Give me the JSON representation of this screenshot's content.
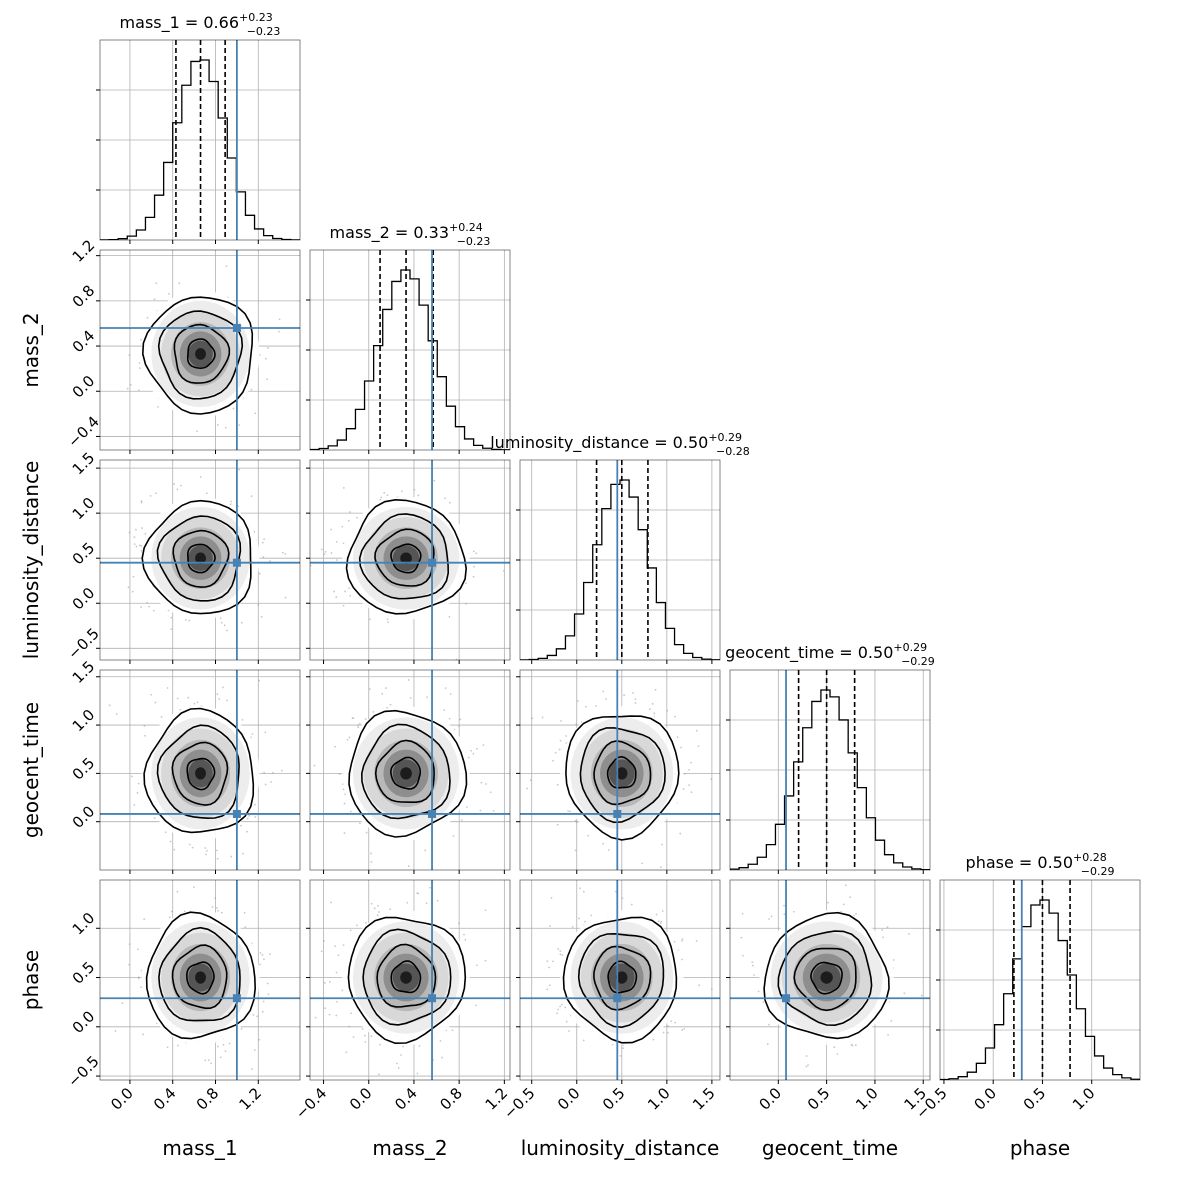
{
  "chart_data": {
    "type": "corner",
    "parameters": [
      {
        "label": "mass_1",
        "title_name": "mass_1",
        "median": "0.66",
        "plus": "+0.23",
        "minus": "−0.23",
        "range": [
          -0.28,
          1.59
        ],
        "ticks": [
          "0.0",
          "0.4",
          "0.8",
          "1.2"
        ],
        "tick_values": [
          0.0,
          0.4,
          0.8,
          1.2
        ],
        "truth": 1.0,
        "quantiles": [
          0.43,
          0.66,
          0.89
        ],
        "mean": 0.66,
        "sd": 0.23
      },
      {
        "label": "mass_2",
        "title_name": "mass_2",
        "median": "0.33",
        "plus": "+0.24",
        "minus": "−0.23",
        "range": [
          -0.52,
          1.25
        ],
        "ticks": [
          "−0.4",
          "0.0",
          "0.4",
          "0.8",
          "1.2"
        ],
        "tick_values": [
          -0.4,
          0.0,
          0.4,
          0.8,
          1.2
        ],
        "truth": 0.56,
        "quantiles": [
          0.1,
          0.33,
          0.57
        ],
        "mean": 0.33,
        "sd": 0.235
      },
      {
        "label": "luminosity_distance",
        "title_name": "luminosity_distance",
        "median": "0.50",
        "plus": "+0.29",
        "minus": "−0.28",
        "range": [
          -0.63,
          1.59
        ],
        "ticks": [
          "−0.5",
          "0.0",
          "0.5",
          "1.0",
          "1.5"
        ],
        "tick_values": [
          -0.5,
          0.0,
          0.5,
          1.0,
          1.5
        ],
        "truth": 0.45,
        "quantiles": [
          0.22,
          0.5,
          0.79
        ],
        "mean": 0.5,
        "sd": 0.285
      },
      {
        "label": "geocent_time",
        "title_name": "geocent_time",
        "median": "0.50",
        "plus": "+0.29",
        "minus": "−0.29",
        "range": [
          -0.5,
          1.57
        ],
        "ticks": [
          "0.0",
          "0.5",
          "1.0",
          "1.5"
        ],
        "tick_values": [
          0.0,
          0.5,
          1.0,
          1.5
        ],
        "truth": 0.08,
        "quantiles": [
          0.21,
          0.5,
          0.79
        ],
        "mean": 0.5,
        "sd": 0.29
      },
      {
        "label": "phase",
        "title_name": "phase",
        "median": "0.50",
        "plus": "+0.28",
        "minus": "−0.29",
        "range": [
          -0.54,
          1.49
        ],
        "ticks": [
          "−0.5",
          "0.0",
          "0.5",
          "1.0"
        ],
        "tick_values": [
          -0.5,
          0.0,
          0.5,
          1.0
        ],
        "truth": 0.29,
        "quantiles": [
          0.21,
          0.5,
          0.78
        ],
        "mean": 0.5,
        "sd": 0.285
      }
    ],
    "row_ticks": [
      null,
      {
        "labels": [
          "−0.4",
          "0.0",
          "0.4",
          "0.8",
          "1.2"
        ],
        "values": [
          -0.4,
          0.0,
          0.4,
          0.8,
          1.2
        ]
      },
      {
        "labels": [
          "−0.5",
          "0.0",
          "0.5",
          "1.0",
          "1.5"
        ],
        "values": [
          -0.5,
          0.0,
          0.5,
          1.0,
          1.5
        ]
      },
      {
        "labels": [
          "0.0",
          "0.5",
          "1.0",
          "1.5"
        ],
        "values": [
          0.0,
          0.5,
          1.0,
          1.5
        ]
      },
      {
        "labels": [
          "−0.5",
          "0.0",
          "0.5",
          "1.0"
        ],
        "values": [
          -0.5,
          0.0,
          0.5,
          1.0
        ]
      }
    ],
    "truth_color": "#4682b4",
    "grid": true,
    "contour_levels_sigma": [
      0.5,
      1.0,
      1.5,
      2.0
    ]
  }
}
